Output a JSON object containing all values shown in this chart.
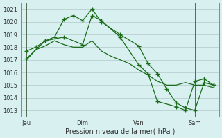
{
  "title": "",
  "xlabel": "Pression niveau de la mer( hPa )",
  "ylabel": "",
  "bg_color": "#d8f0f0",
  "grid_color": "#b0c8c8",
  "line_color": "#1a6b1a",
  "marker_color": "#1a6b1a",
  "ylim": [
    1012.5,
    1021.5
  ],
  "yticks": [
    1013,
    1014,
    1015,
    1016,
    1017,
    1018,
    1019,
    1020,
    1021
  ],
  "xtick_labels": [
    "Jeu",
    "Dim",
    "Ven",
    "Sam"
  ],
  "xtick_positions": [
    0,
    3,
    6,
    9
  ],
  "vline_positions": [
    0,
    3,
    6,
    9
  ],
  "series": [
    {
      "x": [
        0,
        0.5,
        1,
        1.5,
        2,
        2.5,
        3,
        3.5,
        4,
        4.5,
        5,
        5.5,
        6,
        6.5,
        7,
        7.5,
        8,
        8.5,
        9,
        9.5,
        10
      ],
      "y": [
        1017.0,
        1017.8,
        1018.1,
        1018.5,
        1018.2,
        1018.0,
        1018.0,
        1018.5,
        1017.7,
        1017.3,
        1017.0,
        1016.7,
        1016.2,
        1015.8,
        1015.3,
        1015.0,
        1015.0,
        1015.2,
        1015.0,
        1015.0,
        1014.8
      ],
      "has_markers": false
    },
    {
      "x": [
        0,
        0.5,
        1,
        1.5,
        2,
        2.5,
        3,
        3.5,
        4,
        5,
        6,
        6.5,
        7,
        7.5,
        8,
        8.5,
        9,
        9.5,
        10
      ],
      "y": [
        1017.7,
        1018.0,
        1018.5,
        1018.8,
        1020.2,
        1020.5,
        1020.1,
        1021.0,
        1020.0,
        1019.0,
        1018.1,
        1016.7,
        1015.9,
        1014.7,
        1013.6,
        1013.2,
        1013.0,
        1015.2,
        1015.0
      ],
      "has_markers": true
    },
    {
      "x": [
        0,
        1,
        2,
        3,
        3.5,
        4,
        5,
        6,
        6.5,
        7,
        8,
        8.5,
        9,
        9.5,
        10
      ],
      "y": [
        1017.1,
        1018.5,
        1018.8,
        1018.2,
        1020.5,
        1020.1,
        1018.8,
        1016.6,
        1015.9,
        1013.7,
        1013.3,
        1013.0,
        1015.3,
        1015.5,
        1015.0
      ],
      "has_markers": true
    }
  ]
}
